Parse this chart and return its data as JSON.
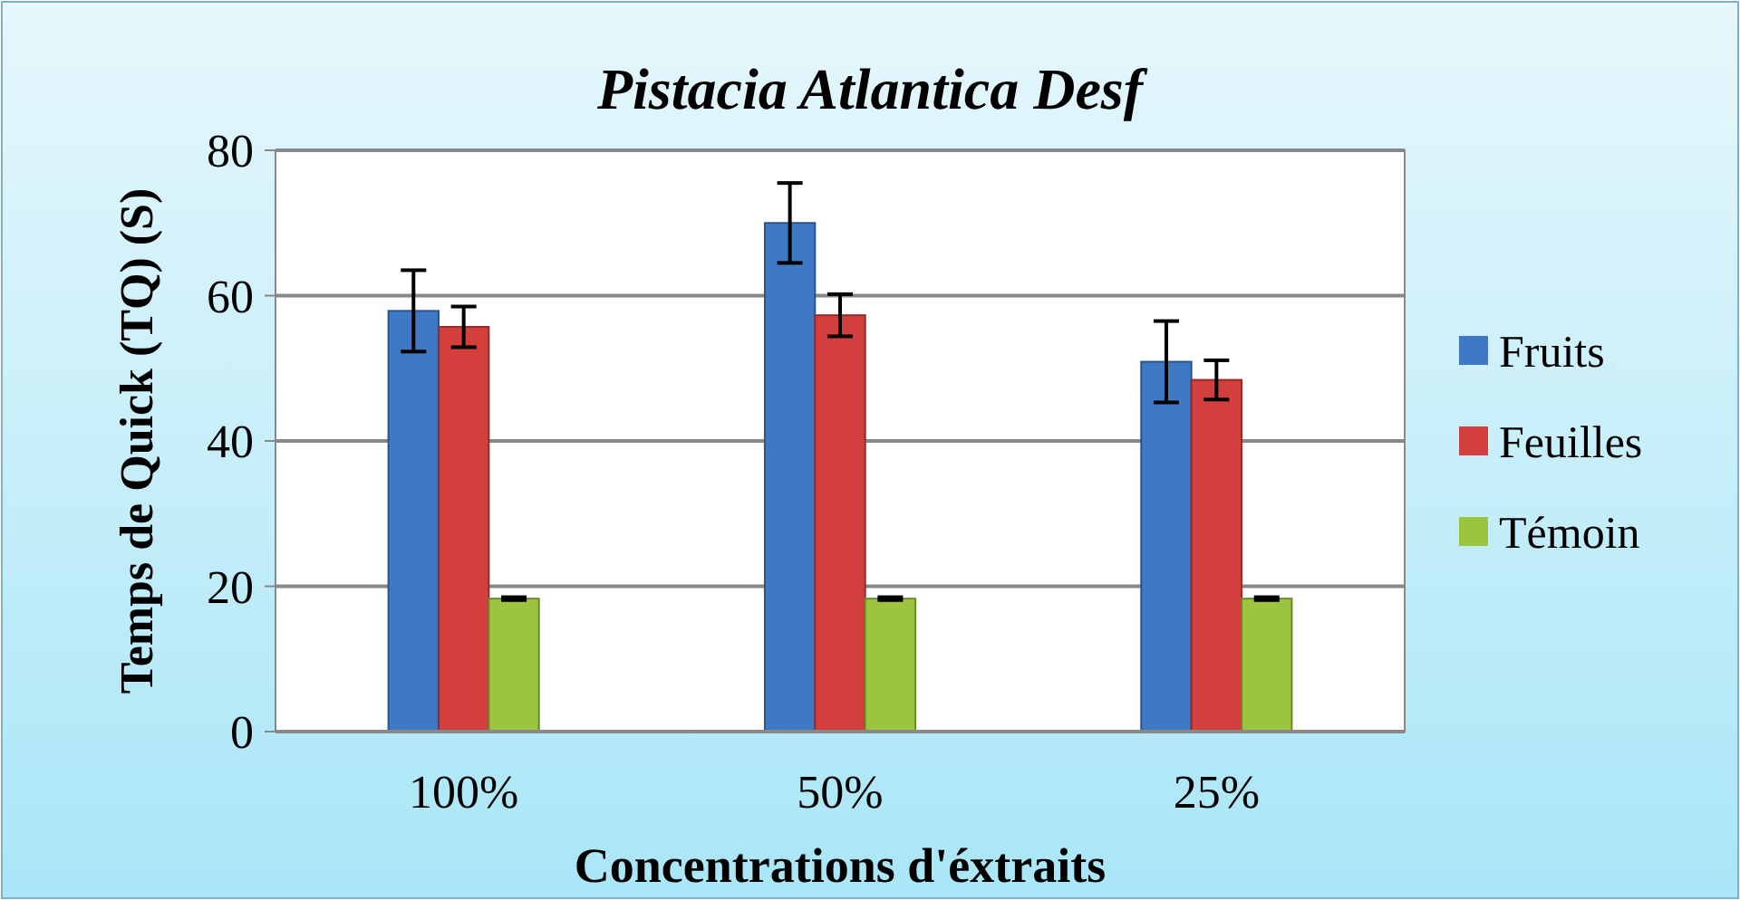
{
  "chart_data": {
    "type": "bar",
    "title": "Pistacia Atlantica Desf",
    "xlabel": "Concentrations d'éxtraits",
    "ylabel": "Temps de Quick (TQ) (S)",
    "categories": [
      "100%",
      "50%",
      "25%"
    ],
    "series": [
      {
        "name": "Fruits",
        "color": "#3f78c4",
        "values": [
          57.9,
          70.0,
          50.9
        ],
        "errors": [
          5.6,
          5.5,
          5.6
        ]
      },
      {
        "name": "Feuilles",
        "color": "#d23f3c",
        "values": [
          55.7,
          57.3,
          48.4
        ],
        "errors": [
          2.8,
          2.9,
          2.7
        ]
      },
      {
        "name": "Témoin",
        "color": "#9cc43e",
        "values": [
          18.3,
          18.3,
          18.3
        ],
        "errors": [
          0.2,
          0.2,
          0.2
        ]
      }
    ],
    "ylim": [
      0,
      80
    ],
    "yticks": [
      0,
      20,
      40,
      60,
      80
    ],
    "grid": "y",
    "legend": "right"
  }
}
